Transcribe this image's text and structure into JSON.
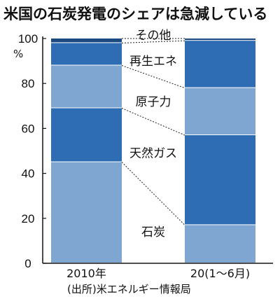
{
  "chart_data": {
    "type": "bar",
    "stacked": true,
    "title": "米国の石炭発電のシェアは急減している",
    "ylabel": "",
    "unit": "%",
    "ylim": [
      0,
      100
    ],
    "yticks": [
      "0",
      "20",
      "40",
      "60",
      "80",
      "100"
    ],
    "grid": false,
    "categories": [
      "2010年",
      "20(1〜6月)"
    ],
    "series": [
      {
        "name": "石炭",
        "values": [
          45,
          17
        ],
        "color": "#7ea6d0"
      },
      {
        "name": "天然ガス",
        "values": [
          24,
          40
        ],
        "color": "#2e6db3"
      },
      {
        "name": "原子力",
        "values": [
          19,
          21
        ],
        "color": "#7ea6d0"
      },
      {
        "name": "再生エネ",
        "values": [
          10,
          21
        ],
        "color": "#2e6db3"
      },
      {
        "name": "その他",
        "values": [
          2,
          1
        ],
        "color": "#1a4a80"
      }
    ],
    "source": "(出所)米エネルギー情報局"
  }
}
